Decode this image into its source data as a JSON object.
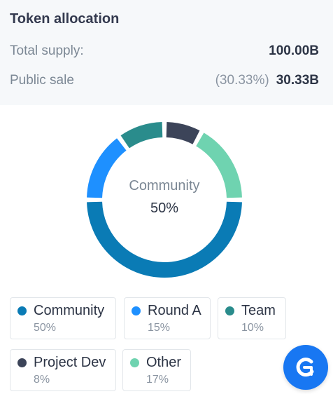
{
  "title": "Token allocation",
  "supply": {
    "label": "Total supply:",
    "value": "100.00B"
  },
  "public_sale": {
    "label": "Public sale",
    "percent": "(30.33%)",
    "value": "30.33B"
  },
  "donut": {
    "center_label": "Community",
    "center_value": "50%"
  },
  "legend": [
    {
      "name": "Community",
      "value": "50%",
      "color": "#0a7bb5"
    },
    {
      "name": "Round A",
      "value": "15%",
      "color": "#1e90ff"
    },
    {
      "name": "Team",
      "value": "10%",
      "color": "#2a8c8c"
    },
    {
      "name": "Project Dev",
      "value": "8%",
      "color": "#3c4459"
    },
    {
      "name": "Other",
      "value": "17%",
      "color": "#6fd3b0"
    }
  ],
  "chat_icon": "chat-bubble-icon",
  "accent": "#1877f2"
}
